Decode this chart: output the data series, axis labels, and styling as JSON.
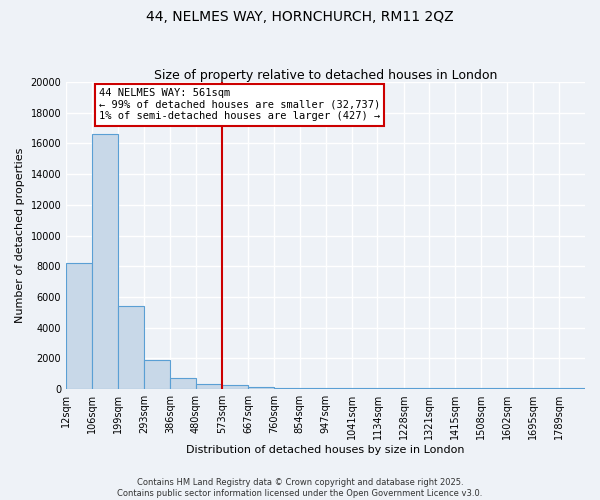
{
  "title_line1": "44, NELMES WAY, HORNCHURCH, RM11 2QZ",
  "title_line2": "Size of property relative to detached houses in London",
  "xlabel": "Distribution of detached houses by size in London",
  "ylabel": "Number of detached properties",
  "bar_edges": [
    12,
    106,
    199,
    293,
    386,
    480,
    573,
    667,
    760,
    854,
    947,
    1041,
    1134,
    1228,
    1321,
    1415,
    1508,
    1602,
    1695,
    1789,
    1882
  ],
  "bar_heights": [
    8200,
    16600,
    5400,
    1900,
    700,
    310,
    270,
    130,
    100,
    100,
    100,
    100,
    100,
    100,
    100,
    100,
    100,
    100,
    100,
    100
  ],
  "bar_color": "#c8d8e8",
  "bar_edge_color": "#5a9fd4",
  "vline_x": 573,
  "vline_color": "#cc0000",
  "annotation_text": "44 NELMES WAY: 561sqm\n← 99% of detached houses are smaller (32,737)\n1% of semi-detached houses are larger (427) →",
  "annotation_box_color": "#ffffff",
  "annotation_box_edge": "#cc0000",
  "ylim": [
    0,
    20000
  ],
  "yticks": [
    0,
    2000,
    4000,
    6000,
    8000,
    10000,
    12000,
    14000,
    16000,
    18000,
    20000
  ],
  "footer_line1": "Contains HM Land Registry data © Crown copyright and database right 2025.",
  "footer_line2": "Contains public sector information licensed under the Open Government Licence v3.0.",
  "bg_color": "#eef2f7",
  "grid_color": "#ffffff",
  "title_fontsize": 10,
  "subtitle_fontsize": 9,
  "tick_label_fontsize": 7,
  "ylabel_fontsize": 8,
  "xlabel_fontsize": 8,
  "annotation_fontsize": 7.5
}
